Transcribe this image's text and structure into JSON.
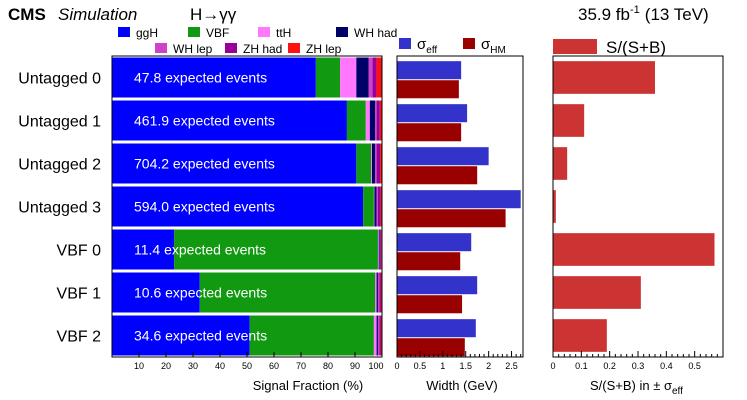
{
  "header": {
    "experiment": "CMS",
    "simulation": "Simulation",
    "channel": "H→γγ",
    "lumi_value": "35.9 fb",
    "lumi_exp": "-1",
    "energy": "(13 TeV)"
  },
  "chart_data": [
    {
      "type": "bar",
      "orientation": "horizontal",
      "stacked": true,
      "title": "Signal Fraction",
      "xlabel": "Signal Fraction (%)",
      "xlim": [
        0,
        100
      ],
      "xticks": [
        "10",
        "20",
        "30",
        "40",
        "50",
        "60",
        "70",
        "80",
        "90",
        "100"
      ],
      "categories": [
        "Untagged 0",
        "Untagged 1",
        "Untagged 2",
        "Untagged 3",
        "VBF 0",
        "VBF 1",
        "VBF 2"
      ],
      "annotations": [
        "47.8 expected events",
        "461.9 expected events",
        "704.2 expected events",
        "594.0 expected events",
        "11.4 expected events",
        "10.6 expected events",
        "34.6 expected events"
      ],
      "series": [
        {
          "name": "ggH",
          "color": "#0000ff",
          "values": [
            75.5,
            87.0,
            90.5,
            93.0,
            23.0,
            32.5,
            51.0
          ]
        },
        {
          "name": "VBF",
          "color": "#119911",
          "values": [
            9.0,
            7.0,
            5.5,
            4.0,
            75.5,
            65.0,
            46.0
          ]
        },
        {
          "name": "ttH",
          "color": "#ff77ff",
          "values": [
            6.0,
            1.5,
            0.3,
            0.2,
            0.3,
            0.5,
            1.0
          ]
        },
        {
          "name": "WH had",
          "color": "#000066",
          "values": [
            4.5,
            2.0,
            1.2,
            0.8,
            0.3,
            0.5,
            0.5
          ]
        },
        {
          "name": "WH lep",
          "color": "#cc44cc",
          "values": [
            1.5,
            0.5,
            0.5,
            0.5,
            0.2,
            0.5,
            0.5
          ]
        },
        {
          "name": "ZH had",
          "color": "#990099",
          "values": [
            1.5,
            1.2,
            1.3,
            1.0,
            0.4,
            0.6,
            0.6
          ]
        },
        {
          "name": "ZH lep",
          "color": "#ff1111",
          "values": [
            2.0,
            0.8,
            0.7,
            0.5,
            0.3,
            0.4,
            0.4
          ]
        }
      ]
    },
    {
      "type": "bar",
      "orientation": "horizontal",
      "title": "Width",
      "xlabel": "Width (GeV)",
      "xlim": [
        0,
        2.75
      ],
      "xticks": [
        "0",
        "0.5",
        "1",
        "1.5",
        "2",
        "2.5"
      ],
      "categories": [
        "Untagged 0",
        "Untagged 1",
        "Untagged 2",
        "Untagged 3",
        "VBF 0",
        "VBF 1",
        "VBF 2"
      ],
      "series": [
        {
          "name": "σ",
          "subscript": "eff",
          "color": "#3333cc",
          "values": [
            1.4,
            1.53,
            2.0,
            2.7,
            1.62,
            1.75,
            1.72
          ]
        },
        {
          "name": "σ",
          "subscript": "HM",
          "color": "#990000",
          "values": [
            1.35,
            1.4,
            1.75,
            2.37,
            1.38,
            1.42,
            1.48
          ]
        }
      ]
    },
    {
      "type": "bar",
      "orientation": "horizontal",
      "title": "S/(S+B)",
      "xlabel": "S/(S+B) in ± σ",
      "xlabel_subscript": "eff",
      "xlim": [
        0,
        0.6
      ],
      "xticks": [
        "0",
        "0.1",
        "0.2",
        "0.3",
        "0.4",
        "0.5"
      ],
      "categories": [
        "Untagged 0",
        "Untagged 1",
        "Untagged 2",
        "Untagged 3",
        "VBF 0",
        "VBF 1",
        "VBF 2"
      ],
      "series": [
        {
          "name": "S/(S+B)",
          "color": "#cc3333",
          "values": [
            0.36,
            0.11,
            0.05,
            0.01,
            0.57,
            0.31,
            0.19
          ]
        }
      ]
    }
  ]
}
